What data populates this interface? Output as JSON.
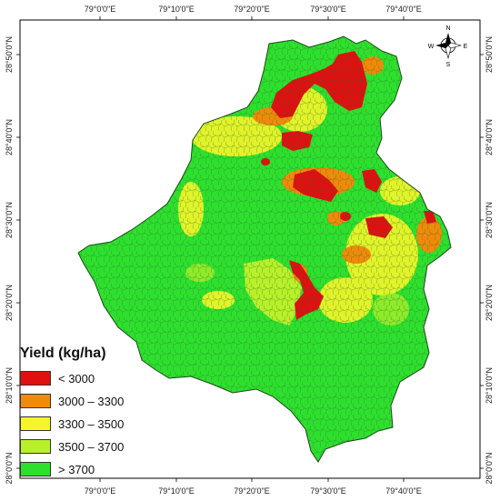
{
  "map": {
    "top_lon_labels": [
      "79°0'0\"E",
      "79°10'0\"E",
      "79°20'0\"E",
      "79°30'0\"E",
      "79°40'0\"E"
    ],
    "bottom_lon_labels": [
      "79°0'0\"E",
      "79°10'0\"E",
      "79°20'0\"E",
      "79°30'0\"E",
      "79°40'0\"E"
    ],
    "left_lat_labels": [
      "28°50'0\"N",
      "28°40'0\"N",
      "28°30'0\"N",
      "28°20'0\"N",
      "28°10'0\"N",
      "28°0'0\"N"
    ],
    "right_lat_labels": [
      "28°50'0\"N",
      "28°40'0\"N",
      "28°30'0\"N",
      "28°20'0\"N",
      "28°10'0\"N",
      "28°0'0\"N"
    ]
  },
  "north_arrow": {
    "n": "N",
    "s": "S",
    "e": "E",
    "w": "W"
  },
  "legend": {
    "title": "Yield (kg/ha)",
    "items": [
      {
        "label": "< 3000",
        "color": "#e01010"
      },
      {
        "label": "3000 – 3300",
        "color": "#f08a0a"
      },
      {
        "label": "3300 – 3500",
        "color": "#f5f52a"
      },
      {
        "label": "3500 – 3700",
        "color": "#b8f02a"
      },
      {
        "label": "> 3700",
        "color": "#2ee02e"
      }
    ]
  }
}
